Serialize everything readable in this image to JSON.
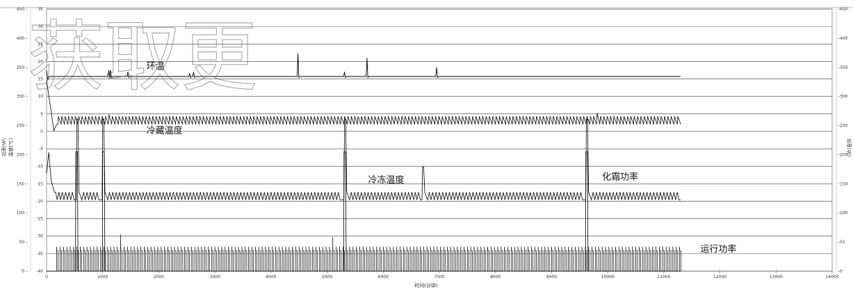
{
  "chart_data": {
    "type": "line",
    "title": "",
    "watermark": "获取更",
    "xlabel": "时间(分钟)",
    "ylabel_left_outer": "功率(W)",
    "ylabel_left_inner": "温度(℃)",
    "ylabel_right": "功率(W)",
    "xlim": [
      0,
      14000
    ],
    "ylim_temperature": [
      -40,
      35
    ],
    "ylim_power": [
      0,
      450
    ],
    "grid": true,
    "x_ticks": [
      0,
      1000,
      2000,
      3000,
      4000,
      5000,
      6000,
      7000,
      8000,
      9000,
      10000,
      11000,
      12000,
      13000,
      14000
    ],
    "temperature_ticks": [
      35,
      30,
      25,
      20,
      15,
      10,
      5,
      0,
      -5,
      -10,
      -15,
      -20,
      -25,
      -30,
      -35,
      -40
    ],
    "power_ticks_left": [
      "450 –",
      "400 –",
      "350 –",
      "300 –",
      "250 –",
      "200 –",
      "150 –",
      "100 –",
      "50 –",
      "0 –"
    ],
    "power_ticks_right": [
      "–450",
      "–400",
      "–350",
      "–300",
      "–250",
      "–200",
      "–150",
      "–100",
      "–50",
      "–0"
    ],
    "power_tick_values": [
      450,
      400,
      350,
      300,
      250,
      200,
      150,
      100,
      50,
      0
    ],
    "series": [
      {
        "name": "环温",
        "color": "#000000",
        "axis": "temperature",
        "baseline": 15.7,
        "start_value": 17.5,
        "end_x": 11300,
        "spikes": [
          {
            "x": 1110,
            "y": 17.5
          },
          {
            "x": 1140,
            "y": 17.6
          },
          {
            "x": 1450,
            "y": 17.0
          },
          {
            "x": 2550,
            "y": 16.6
          },
          {
            "x": 2620,
            "y": 17.0
          },
          {
            "x": 4480,
            "y": 22.3
          },
          {
            "x": 5310,
            "y": 17.0
          },
          {
            "x": 5710,
            "y": 21.0
          },
          {
            "x": 6950,
            "y": 18.3
          }
        ]
      },
      {
        "name": "冷藏温度",
        "color": "#000000",
        "axis": "temperature",
        "low": 2.0,
        "high": 4.3,
        "period_min": 60,
        "end_x": 11300,
        "steps": [
          {
            "x": 1100,
            "y": 4.8
          },
          {
            "x": 5400,
            "y": 4.3
          },
          {
            "x": 9760,
            "y": 5.2
          }
        ]
      },
      {
        "name": "冷冻温度",
        "color": "#000000",
        "axis": "temperature",
        "low": -19.6,
        "high": -17.4,
        "period_min": 60,
        "end_x": 11300,
        "defrost_peaks": [
          {
            "x": 540,
            "y": 3.5
          },
          {
            "x": 1000,
            "y": 3.5
          },
          {
            "x": 5310,
            "y": 3.5
          },
          {
            "x": 9620,
            "y": 3.5
          },
          {
            "x": 6700,
            "y": -10.2
          }
        ]
      },
      {
        "name": "化霜功率",
        "color": "#000000",
        "axis": "power",
        "baseline": 0,
        "events": [
          {
            "x": 520,
            "y": 205
          },
          {
            "x": 1000,
            "y": 205
          },
          {
            "x": 5300,
            "y": 205
          },
          {
            "x": 9610,
            "y": 205
          }
        ]
      },
      {
        "name": "运行功率",
        "color": "#000000",
        "axis": "temperature",
        "on_level": -33.0,
        "off_level": -40.0,
        "steady_level": -34.2,
        "period_min": 60,
        "end_x": 11300,
        "tall_spikes": [
          {
            "x": 1330,
            "y": -29.5
          },
          {
            "x": 5080,
            "y": -30.2
          }
        ]
      }
    ],
    "annotations": [
      {
        "text": "环温",
        "x": 1780,
        "y": 17.8
      },
      {
        "text": "冷藏温度",
        "x": 1780,
        "y": -0.6
      },
      {
        "text": "冷冻温度",
        "x": 5730,
        "y": -14.7
      },
      {
        "text": "化霜功率",
        "x": 9900,
        "y": -13.8
      },
      {
        "text": "运行功率",
        "x": 11650,
        "y": -34.5
      }
    ]
  }
}
